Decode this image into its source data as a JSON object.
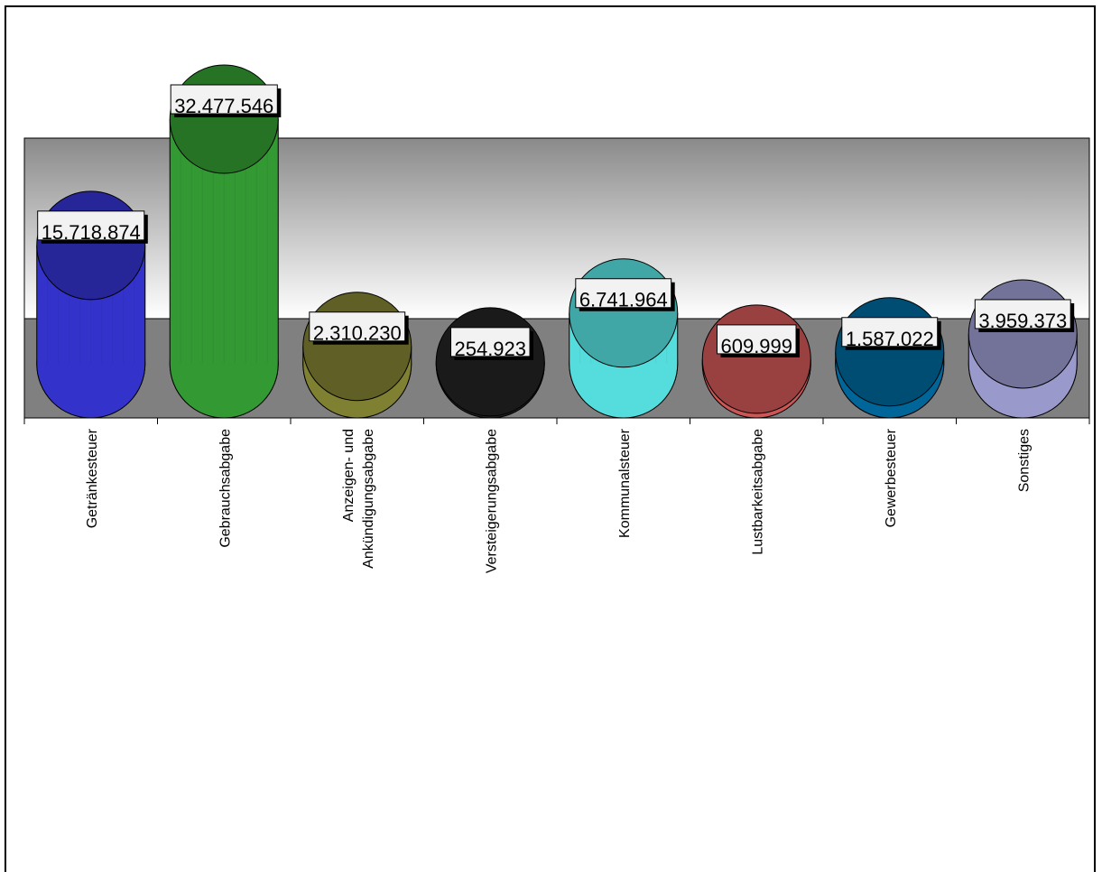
{
  "chart_data": {
    "type": "bar",
    "style": "3d-cylinder",
    "categories": [
      "Getränkesteuer",
      "Gebrauchsabgabe",
      "Anzeigen- und Ankündigungsabgabe",
      "Versteigerungsabgabe",
      "Kommunalsteuer",
      "Lustbarkeitsabgabe",
      "Gewerbesteuer",
      "Sonstiges"
    ],
    "category_label_lines": [
      [
        "Getränkesteuer"
      ],
      [
        "Gebrauchsabgabe"
      ],
      [
        "Anzeigen- und",
        "Ankündigungsabgabe"
      ],
      [
        "Versteigerungsabgabe"
      ],
      [
        "Kommunalsteuer"
      ],
      [
        "Lustbarkeitsabgabe"
      ],
      [
        "Gewerbesteuer"
      ],
      [
        "Sonstiges"
      ]
    ],
    "values": [
      15718874,
      32477546,
      2310230,
      254923,
      6741964,
      609999,
      1587022,
      3959373
    ],
    "value_labels": [
      "15.718.874",
      "32.477.546",
      "2.310.230",
      "254.923",
      "6.741.964",
      "609.999",
      "1.587.022",
      "3.959.373"
    ],
    "colors": [
      "#3333cc",
      "#339933",
      "#808033",
      "#222222",
      "#55dddd",
      "#cc5555",
      "#006699",
      "#9999cc"
    ],
    "title": "",
    "xlabel": "",
    "ylabel": "",
    "ylim": [
      0,
      35000000
    ],
    "grid": false,
    "legend": "none"
  }
}
